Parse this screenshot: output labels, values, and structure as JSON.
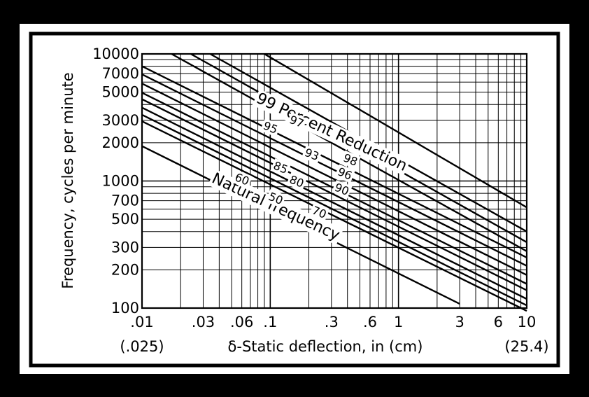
{
  "chart_data": {
    "type": "line",
    "xscale": "log",
    "yscale": "log",
    "xlim": [
      0.01,
      10
    ],
    "ylim": [
      100,
      10000
    ],
    "grid": true,
    "ylabel": "Frequency, cycles per minute",
    "xlabel": "δ-Static deflection, in (cm)",
    "x_ticks": [
      {
        "value": 0.01,
        "label": ".01"
      },
      {
        "value": 0.03,
        "label": ".03"
      },
      {
        "value": 0.06,
        "label": ".06"
      },
      {
        "value": 0.1,
        "label": ".1"
      },
      {
        "value": 0.3,
        "label": ".3"
      },
      {
        "value": 0.6,
        "label": ".6"
      },
      {
        "value": 1,
        "label": "1"
      },
      {
        "value": 3,
        "label": "3"
      },
      {
        "value": 6,
        "label": "6"
      },
      {
        "value": 10,
        "label": "10"
      }
    ],
    "x_secondary_labels": [
      {
        "value": 0.01,
        "label": "(.025)"
      },
      {
        "value": 10,
        "label": "(25.4)"
      }
    ],
    "y_ticks": [
      {
        "value": 100,
        "label": "100"
      },
      {
        "value": 200,
        "label": "200"
      },
      {
        "value": 300,
        "label": "300"
      },
      {
        "value": 500,
        "label": "500"
      },
      {
        "value": 700,
        "label": "700"
      },
      {
        "value": 1000,
        "label": "1000"
      },
      {
        "value": 2000,
        "label": "2000"
      },
      {
        "value": 3000,
        "label": "3000"
      },
      {
        "value": 5000,
        "label": "5000"
      },
      {
        "value": 7000,
        "label": "7000"
      },
      {
        "value": 10000,
        "label": "10000"
      }
    ],
    "series": [
      {
        "name": "Natural frequency",
        "label_value": "",
        "x": [
          0.01,
          3
        ],
        "y": [
          1880,
          108
        ]
      },
      {
        "name": "",
        "label_value": "50",
        "x": [
          0.01,
          10
        ],
        "y": [
          2950,
          95
        ]
      },
      {
        "name": "",
        "label_value": "60",
        "x": [
          0.01,
          10
        ],
        "y": [
          3320,
          105
        ]
      },
      {
        "name": "",
        "label_value": "70",
        "x": [
          0.01,
          10
        ],
        "y": [
          3780,
          118
        ]
      },
      {
        "name": "",
        "label_value": "80",
        "x": [
          0.01,
          10
        ],
        "y": [
          4400,
          138
        ]
      },
      {
        "name": "",
        "label_value": "85",
        "x": [
          0.01,
          10
        ],
        "y": [
          4950,
          155
        ]
      },
      {
        "name": "",
        "label_value": "90",
        "x": [
          0.01,
          10
        ],
        "y": [
          5850,
          182
        ]
      },
      {
        "name": "",
        "label_value": "93",
        "x": [
          0.01,
          10
        ],
        "y": [
          6900,
          215
        ]
      },
      {
        "name": "",
        "label_value": "95",
        "x": [
          0.01,
          10
        ],
        "y": [
          8000,
          250
        ]
      },
      {
        "name": "",
        "label_value": "96",
        "x": [
          0.017,
          10
        ],
        "y": [
          10000,
          280
        ]
      },
      {
        "name": "",
        "label_value": "97",
        "x": [
          0.024,
          10
        ],
        "y": [
          10000,
          330
        ]
      },
      {
        "name": "",
        "label_value": "98",
        "x": [
          0.034,
          10
        ],
        "y": [
          10000,
          400
        ]
      },
      {
        "name": "",
        "label_value": "99",
        "x": [
          0.09,
          10
        ],
        "y": [
          10000,
          620
        ]
      }
    ],
    "annotations": [
      {
        "text": "99 Percent Reduction",
        "x": 0.3,
        "y": 2400
      },
      {
        "text": "Natural frequency",
        "x": 0.11,
        "y": 620
      },
      {
        "text": "95",
        "x": 0.1,
        "y": 2600
      },
      {
        "text": "97",
        "x": 0.16,
        "y": 2900
      },
      {
        "text": "98",
        "x": 0.42,
        "y": 1450
      },
      {
        "text": "93",
        "x": 0.21,
        "y": 1600
      },
      {
        "text": "96",
        "x": 0.38,
        "y": 1130
      },
      {
        "text": "85",
        "x": 0.12,
        "y": 1260
      },
      {
        "text": "80",
        "x": 0.16,
        "y": 980
      },
      {
        "text": "90",
        "x": 0.36,
        "y": 850
      },
      {
        "text": "60",
        "x": 0.06,
        "y": 1020
      },
      {
        "text": "50",
        "x": 0.11,
        "y": 720
      },
      {
        "text": "70",
        "x": 0.24,
        "y": 560
      }
    ]
  }
}
